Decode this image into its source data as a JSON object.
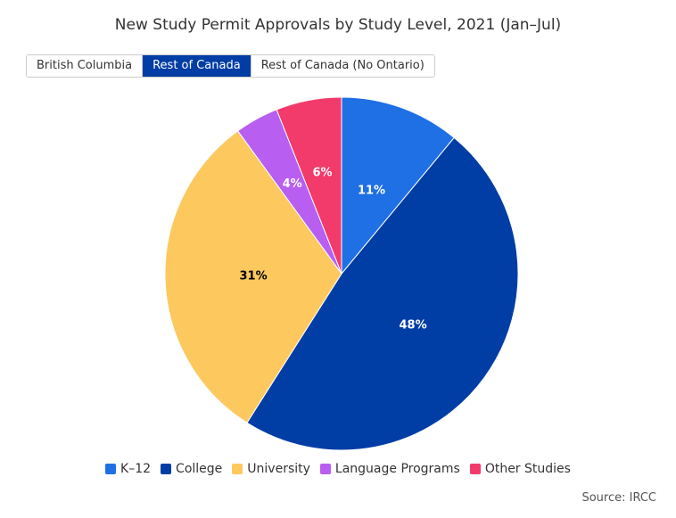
{
  "chart_data": {
    "type": "pie",
    "title": "New Study Permit Approvals by Study Level, 2021 (Jan–Jul)",
    "slices": [
      {
        "label": "K–12",
        "value": 11,
        "display": "11%",
        "color": "#1f6fe5",
        "label_color": "#ffffff"
      },
      {
        "label": "College",
        "value": 48,
        "display": "48%",
        "color": "#003da5",
        "label_color": "#ffffff"
      },
      {
        "label": "University",
        "value": 31,
        "display": "31%",
        "color": "#fdc85e",
        "label_color": "#000000"
      },
      {
        "label": "Language Programs",
        "value": 4,
        "display": "4%",
        "color": "#b85ef0",
        "label_color": "#ffffff"
      },
      {
        "label": "Other Studies",
        "value": 6,
        "display": "6%",
        "color": "#f23a6b",
        "label_color": "#ffffff"
      }
    ],
    "legend_position": "bottom"
  },
  "tabs": [
    {
      "label": "British Columbia",
      "active": false
    },
    {
      "label": "Rest of Canada",
      "active": true
    },
    {
      "label": "Rest of Canada (No Ontario)",
      "active": false
    }
  ],
  "source": "Source: IRCC"
}
